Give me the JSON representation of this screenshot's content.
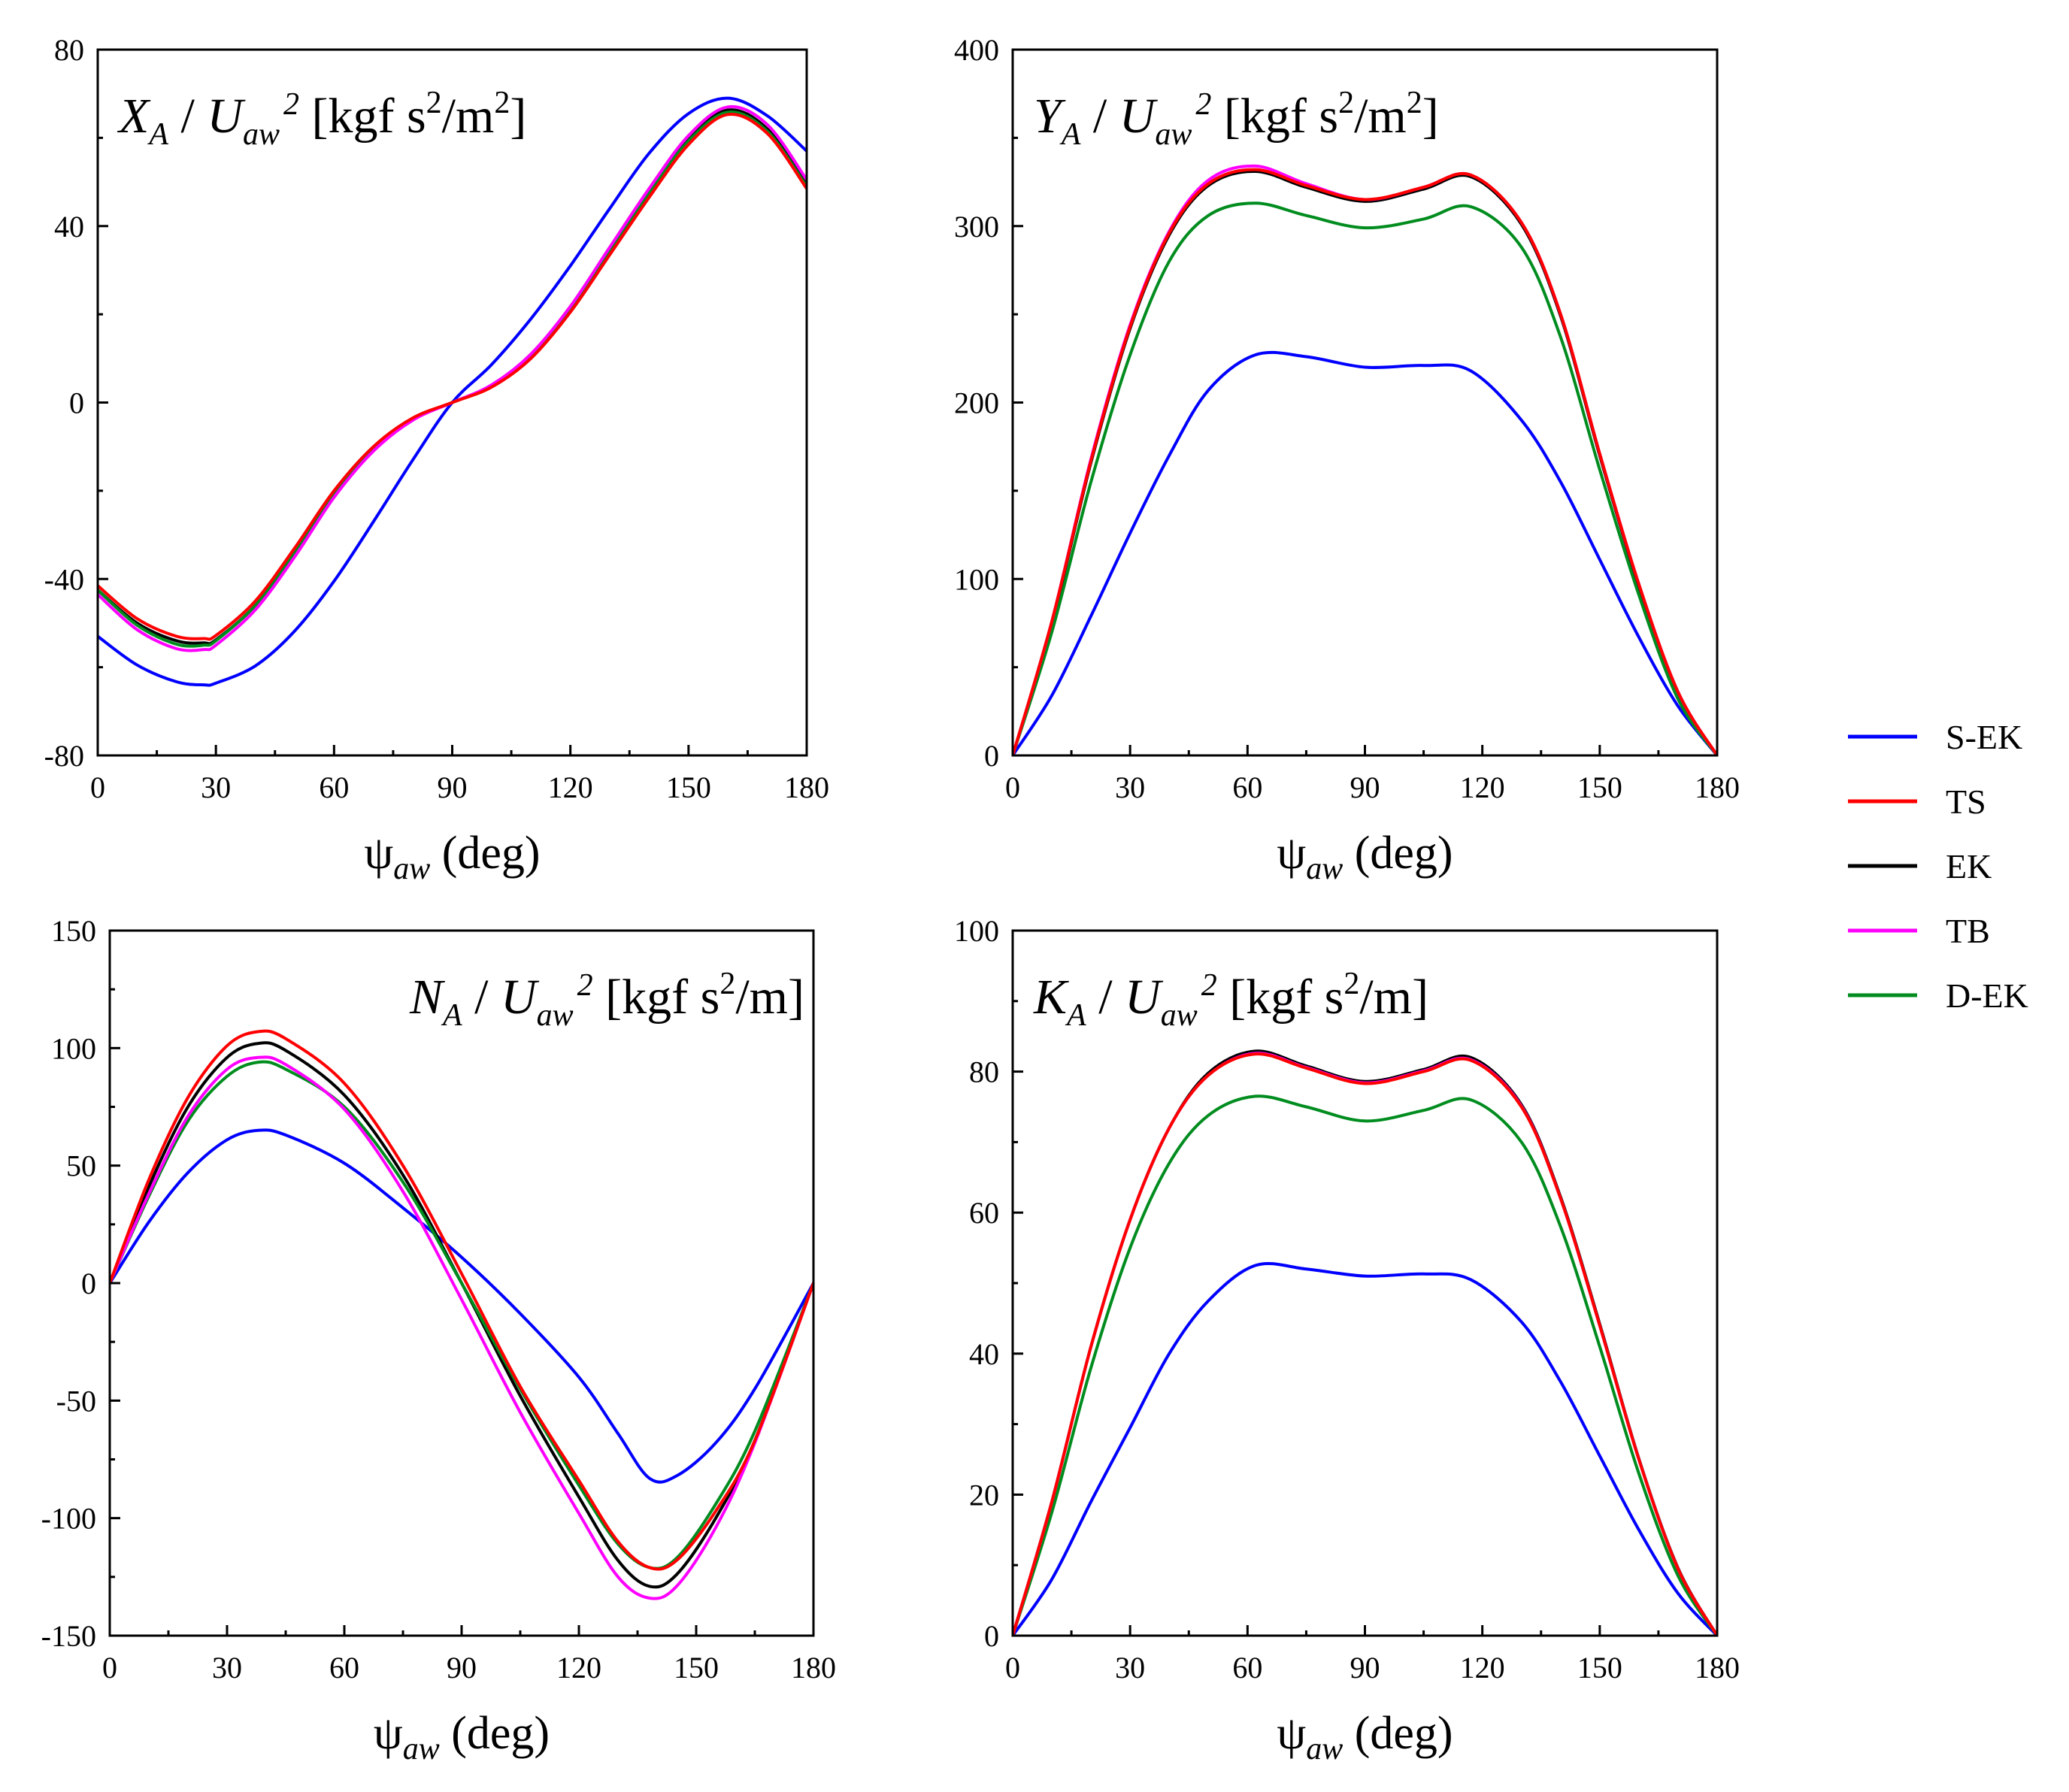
{
  "colors": {
    "S-EK": "#0000ff",
    "TS": "#ff0000",
    "EK": "#000000",
    "TB": "#ff00ff",
    "D-EK": "#008c1e"
  },
  "legend": [
    "S-EK",
    "TS",
    "EK",
    "TB",
    "D-EK"
  ],
  "chart_data": [
    {
      "type": "line",
      "title": {
        "var": "X",
        "sub": "A",
        "den": "U",
        "dsub": "aw",
        "sup": "2",
        "unit": "[kgf s",
        "unit_sup": "2",
        "unit_tail": "/m",
        "unit_sup2": "2",
        "close": "]"
      },
      "xlabel": {
        "sym": "ψ",
        "sub": "aw",
        "rest": " (deg)"
      },
      "xlim": [
        0,
        180
      ],
      "ylim": [
        -80,
        80
      ],
      "xticks": [
        "0",
        "30",
        "60",
        "90",
        "120",
        "150",
        "180"
      ],
      "yticks": [
        "-80",
        "-40",
        "0",
        "40",
        "80"
      ],
      "title_align": "left",
      "x": [
        0,
        10,
        20,
        27,
        30,
        40,
        50,
        60,
        70,
        80,
        90,
        100,
        110,
        120,
        130,
        140,
        150,
        160,
        170,
        180
      ],
      "series": [
        {
          "name": "S-EK",
          "values": [
            -53,
            -59.5,
            -63.3,
            -64,
            -63.6,
            -59.7,
            -51.8,
            -40.5,
            -27,
            -13,
            0,
            8.6,
            19,
            31,
            44,
            56.5,
            65.5,
            69,
            65,
            57
          ]
        },
        {
          "name": "TS",
          "values": [
            -41.5,
            -49,
            -53,
            -53.5,
            -52.8,
            -45,
            -33,
            -20,
            -10,
            -3.5,
            0,
            3.5,
            10,
            20.5,
            33.5,
            46.5,
            58.5,
            65.3,
            61,
            48.5
          ]
        },
        {
          "name": "EK",
          "values": [
            -42.5,
            -50,
            -54,
            -54.5,
            -53.8,
            -46,
            -34,
            -21,
            -10.5,
            -3.8,
            0,
            3.8,
            10.5,
            21,
            34.5,
            47.5,
            59.5,
            66.3,
            62,
            49.5
          ]
        },
        {
          "name": "TB",
          "values": [
            -43.5,
            -51.5,
            -55.8,
            -56,
            -55,
            -47,
            -35,
            -21.5,
            -11,
            -4,
            0,
            4,
            11,
            21.8,
            35.2,
            48.5,
            60.5,
            67,
            63,
            50.5
          ]
        },
        {
          "name": "D-EK",
          "values": [
            -42.5,
            -50.5,
            -54.8,
            -55,
            -54,
            -46,
            -34,
            -21,
            -10.5,
            -3.8,
            0,
            3.8,
            10.5,
            21,
            34.5,
            47.5,
            59.3,
            65.8,
            61.5,
            49
          ]
        }
      ]
    },
    {
      "type": "line",
      "title": {
        "var": "Y",
        "sub": "A",
        "den": "U",
        "dsub": "aw",
        "sup": "2",
        "unit": "[kgf s",
        "unit_sup": "2",
        "unit_tail": "/m",
        "unit_sup2": "2",
        "close": "]"
      },
      "xlabel": {
        "sym": "ψ",
        "sub": "aw",
        "rest": " (deg)"
      },
      "xlim": [
        0,
        180
      ],
      "ylim": [
        0,
        400
      ],
      "xticks": [
        "0",
        "30",
        "60",
        "90",
        "120",
        "150",
        "180"
      ],
      "yticks": [
        "0",
        "100",
        "200",
        "300",
        "400"
      ],
      "title_align": "left",
      "x": [
        0,
        10,
        20,
        30,
        40,
        50,
        62,
        75,
        90,
        105,
        117,
        130,
        140,
        150,
        160,
        170,
        180
      ],
      "series": [
        {
          "name": "S-EK",
          "values": [
            0,
            34,
            79,
            126,
            170,
            207,
            227,
            226,
            220,
            221,
            218,
            190,
            155,
            111,
            67,
            28,
            0
          ]
        },
        {
          "name": "TS",
          "values": [
            0,
            76,
            167,
            243,
            296,
            324,
            332,
            323,
            315,
            322,
            329,
            302,
            250,
            171,
            97,
            36,
            0
          ]
        },
        {
          "name": "EK",
          "values": [
            0,
            75,
            166,
            242,
            295,
            323,
            331,
            322,
            314,
            321,
            328,
            301,
            249,
            170,
            96,
            35,
            0
          ]
        },
        {
          "name": "TB",
          "values": [
            0,
            76,
            168,
            244,
            297,
            326,
            334,
            324,
            315,
            322,
            329,
            302,
            250,
            171,
            97,
            36,
            0
          ]
        },
        {
          "name": "D-EK",
          "values": [
            0,
            70,
            155,
            227,
            280,
            306,
            313,
            306,
            299,
            304,
            311,
            288,
            237,
            162,
            91,
            32,
            0
          ]
        }
      ]
    },
    {
      "type": "line",
      "title": {
        "var": "N",
        "sub": "A",
        "den": "U",
        "dsub": "aw",
        "sup": "2",
        "unit": "[kgf s",
        "unit_sup": "2",
        "unit_tail": "/m",
        "unit_sup2": "",
        "close": "]"
      },
      "xlabel": {
        "sym": "ψ",
        "sub": "aw",
        "rest": " (deg)"
      },
      "xlim": [
        0,
        180
      ],
      "ylim": [
        -150,
        150
      ],
      "xticks": [
        "0",
        "30",
        "60",
        "90",
        "120",
        "150",
        "180"
      ],
      "yticks": [
        "-150",
        "-100",
        "-50",
        "0",
        "50",
        "100",
        "150"
      ],
      "title_align": "right",
      "x": [
        0,
        10,
        20,
        30,
        38,
        45,
        60,
        75,
        90,
        105,
        120,
        130,
        138,
        145,
        155,
        165,
        180
      ],
      "series": [
        {
          "name": "S-EK",
          "values": [
            0,
            26,
            47,
            61,
            65,
            63,
            51,
            32,
            11,
            -13,
            -40,
            -64,
            -83,
            -82,
            -68,
            -45,
            0
          ]
        },
        {
          "name": "TS",
          "values": [
            0,
            44,
            79,
            101,
            107,
            104,
            85,
            50,
            4,
            -44,
            -84,
            -110,
            -121,
            -118,
            -97,
            -67,
            0
          ]
        },
        {
          "name": "EK",
          "values": [
            0,
            41,
            75,
            96,
            102,
            99,
            80,
            46,
            0,
            -48,
            -91,
            -118,
            -129,
            -124,
            -100,
            -67,
            0
          ]
        },
        {
          "name": "TB",
          "values": [
            0,
            38,
            71,
            91,
            96,
            93,
            74,
            39,
            -7,
            -55,
            -98,
            -125,
            -134,
            -129,
            -104,
            -68,
            0
          ]
        },
        {
          "name": "D-EK",
          "values": [
            0,
            37,
            69,
            88,
            94,
            91,
            75,
            43,
            0,
            -45,
            -86,
            -111,
            -121,
            -117,
            -94,
            -63,
            0
          ]
        }
      ]
    },
    {
      "type": "line",
      "title": {
        "var": "K",
        "sub": "A",
        "den": "U",
        "dsub": "aw",
        "sup": "2",
        "unit": "[kgf s",
        "unit_sup": "2",
        "unit_tail": "/m",
        "unit_sup2": "",
        "close": "]"
      },
      "xlabel": {
        "sym": "ψ",
        "sub": "aw",
        "rest": " (deg)"
      },
      "xlim": [
        0,
        180
      ],
      "ylim": [
        0,
        100
      ],
      "xticks": [
        "0",
        "30",
        "60",
        "90",
        "120",
        "150",
        "180"
      ],
      "yticks": [
        "0",
        "20",
        "40",
        "60",
        "80",
        "100"
      ],
      "title_align": "left",
      "x": [
        0,
        10,
        20,
        30,
        40,
        50,
        62,
        75,
        90,
        105,
        117,
        130,
        140,
        150,
        160,
        170,
        180
      ],
      "series": [
        {
          "name": "S-EK",
          "values": [
            0,
            8,
            19,
            29.5,
            40,
            47.5,
            52.5,
            52,
            51,
            51.3,
            50.5,
            44.5,
            36,
            25.5,
            15,
            6,
            0
          ]
        },
        {
          "name": "TS",
          "values": [
            0,
            19,
            41,
            59,
            72,
            79.5,
            82.5,
            80.5,
            78.3,
            80,
            81.6,
            75,
            62,
            44,
            25,
            9.5,
            0
          ]
        },
        {
          "name": "EK",
          "values": [
            0,
            19,
            41,
            59,
            72,
            79.8,
            82.9,
            80.8,
            78.6,
            80.3,
            82,
            75.3,
            62.2,
            44.2,
            25.1,
            9.6,
            0
          ]
        },
        {
          "name": "TB",
          "values": [
            0,
            19,
            41,
            59,
            72,
            79.5,
            82.6,
            80.6,
            78.4,
            80.1,
            81.7,
            75.1,
            62,
            44,
            25,
            9.5,
            0
          ]
        },
        {
          "name": "D-EK",
          "values": [
            0,
            17.5,
            38,
            55,
            67,
            73.8,
            76.5,
            75,
            73,
            74.5,
            76,
            70,
            58,
            41,
            23,
            8.5,
            0
          ]
        }
      ]
    }
  ]
}
